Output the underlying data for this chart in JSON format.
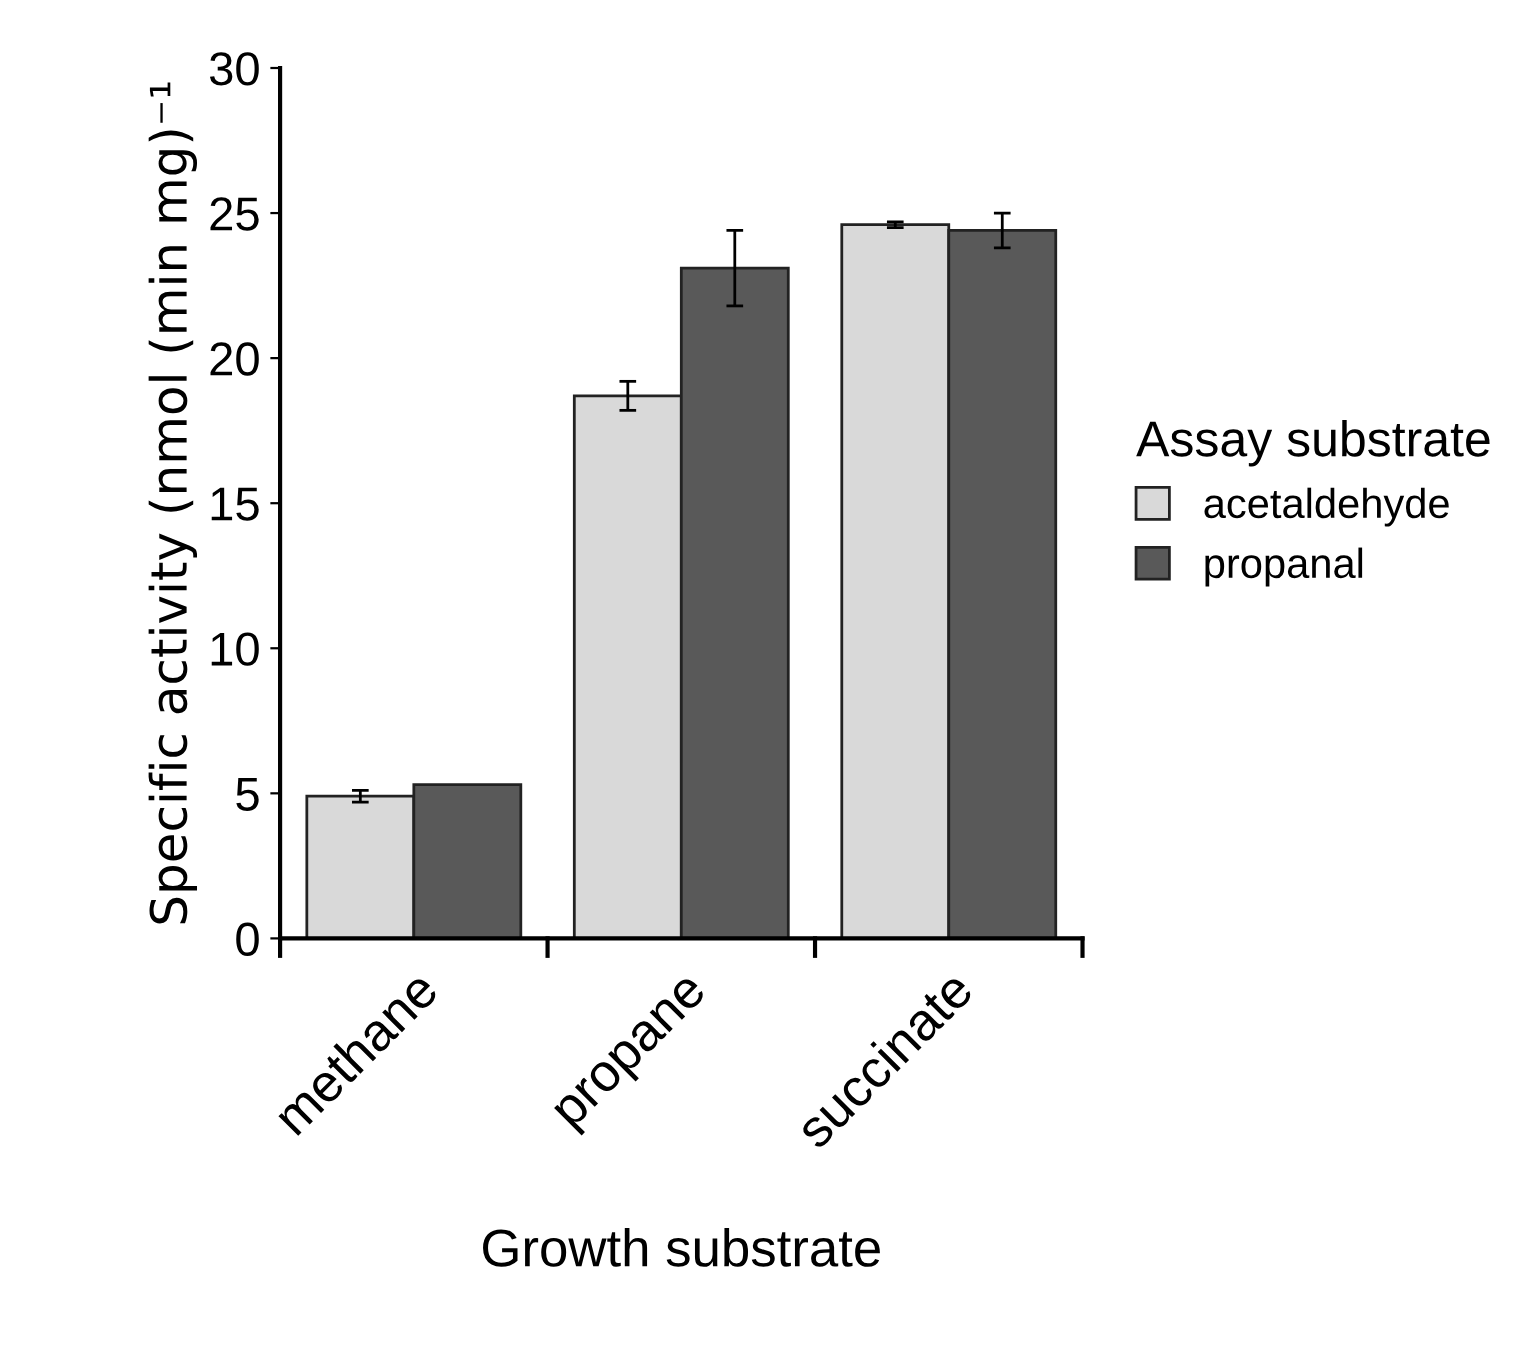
{
  "chart_data": {
    "type": "bar",
    "xlabel": "Growth substrate",
    "ylabel": "Specific activity (nmol (min mg)⁻¹",
    "legend_title": "Assay substrate",
    "categories": [
      "methane",
      "propane",
      "succinate"
    ],
    "series": [
      {
        "name": "acetaldehyde",
        "color": "#d9d9d9",
        "values": [
          4.9,
          18.7,
          24.6
        ],
        "errors": [
          0.2,
          0.5,
          0.1
        ]
      },
      {
        "name": "propanal",
        "color": "#595959",
        "values": [
          5.3,
          23.1,
          24.4
        ],
        "errors": [
          null,
          1.3,
          0.6
        ]
      }
    ],
    "ylim": [
      0,
      30
    ],
    "yticks": [
      0,
      5,
      10,
      15,
      20,
      25,
      30
    ],
    "grid": false,
    "legend": "right"
  }
}
